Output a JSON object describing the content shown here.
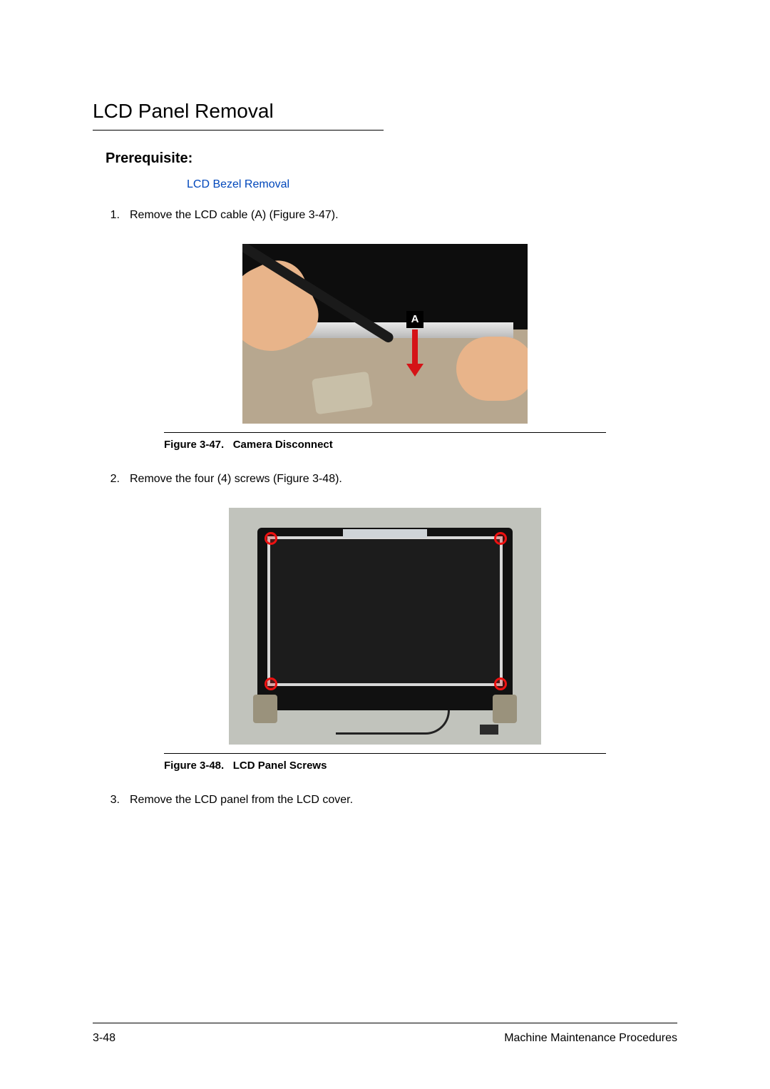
{
  "section_title": "LCD Panel Removal",
  "subheading": "Prerequisite:",
  "prereq_link": "LCD Bezel Removal",
  "steps": {
    "s1": {
      "num": "1.",
      "text": "Remove the LCD cable (A) (Figure 3-47)."
    },
    "s2": {
      "num": "2.",
      "text": "Remove the four (4) screws (Figure 3-48)."
    },
    "s3": {
      "num": "3.",
      "text": "Remove the LCD panel from the LCD cover."
    }
  },
  "figures": {
    "f1": {
      "label_prefix": "Figure 3-47.",
      "title": "Camera Disconnect",
      "marker": "A"
    },
    "f2": {
      "label_prefix": "Figure 3-48.",
      "title": "LCD Panel Screws"
    }
  },
  "footer": {
    "page": "3-48",
    "doc": "Machine Maintenance Procedures"
  },
  "colors": {
    "link": "#0047bb",
    "arrow": "#d51317",
    "screw_ring": "#e11"
  }
}
